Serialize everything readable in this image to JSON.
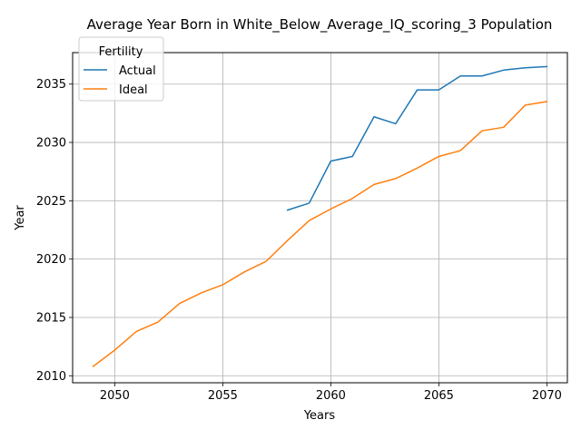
{
  "chart_data": {
    "type": "line",
    "title": "Average Year Born in White_Below_Average_IQ_scoring_3 Population",
    "xlabel": "Years",
    "ylabel": "Year",
    "xlim": [
      2048.05,
      2070.95
    ],
    "ylim": [
      2009.4,
      2037.7
    ],
    "xticks": [
      2050,
      2055,
      2060,
      2065,
      2070
    ],
    "yticks": [
      2010,
      2015,
      2020,
      2025,
      2030,
      2035
    ],
    "grid": true,
    "legend": {
      "title": "Fertility",
      "placement": "top-left"
    },
    "series": [
      {
        "name": "Actual",
        "color": "#1f77b4",
        "x": [
          2058,
          2059,
          2060,
          2061,
          2062,
          2063,
          2064,
          2065,
          2066,
          2067,
          2068,
          2069,
          2070
        ],
        "y": [
          2024.2,
          2024.8,
          2028.4,
          2028.8,
          2032.2,
          2031.6,
          2034.5,
          2034.5,
          2035.7,
          2035.7,
          2036.2,
          2036.4,
          2036.5
        ]
      },
      {
        "name": "Ideal",
        "color": "#ff7f0e",
        "x": [
          2049,
          2050,
          2051,
          2052,
          2053,
          2054,
          2055,
          2056,
          2057,
          2058,
          2059,
          2060,
          2061,
          2062,
          2063,
          2064,
          2065,
          2066,
          2067,
          2068,
          2069,
          2070
        ],
        "y": [
          2010.8,
          2012.2,
          2013.8,
          2014.6,
          2016.2,
          2017.1,
          2017.8,
          2018.9,
          2019.8,
          2021.6,
          2023.3,
          2024.3,
          2025.2,
          2026.4,
          2026.9,
          2027.8,
          2028.8,
          2029.3,
          2031.0,
          2031.3,
          2033.2,
          2033.5
        ]
      }
    ]
  }
}
